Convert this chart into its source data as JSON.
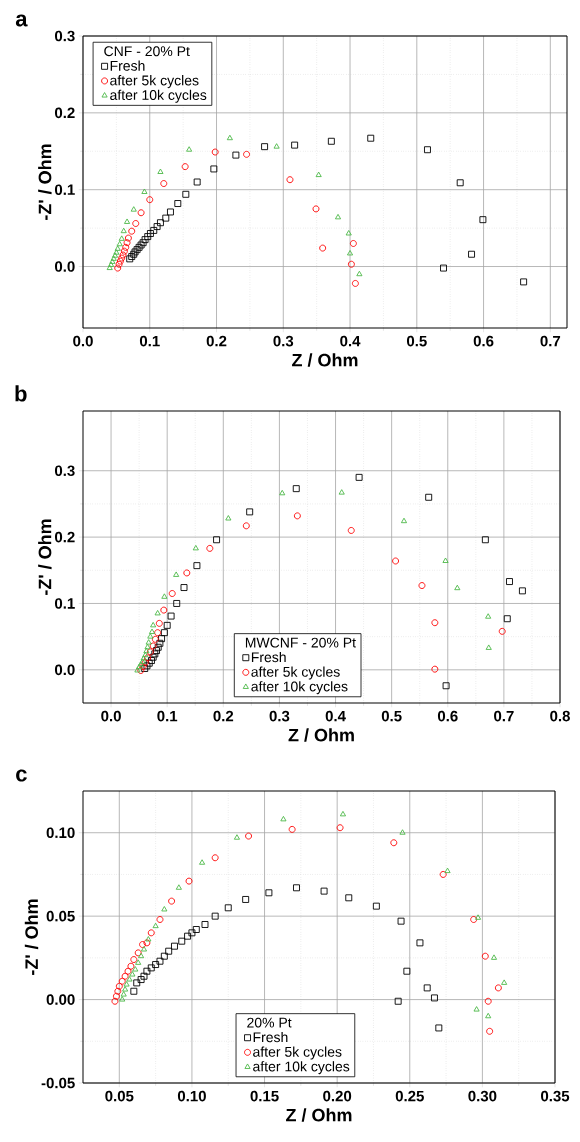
{
  "chart_data": [
    {
      "type": "scatter",
      "title": "a",
      "xlabel": "Z / Ohm",
      "ylabel": "-Z' / Ohm",
      "legend_title": "CNF - 20% Pt",
      "legend": "top left",
      "grid": true,
      "xlim": [
        0,
        0.725
      ],
      "ylim": [
        -0.08,
        0.3
      ],
      "xticks": [
        {
          "value": 0,
          "label": "0.0"
        },
        0.1,
        0.2,
        0.3,
        0.4,
        0.5,
        0.6,
        0.7
      ],
      "yticks": [
        {
          "value": 0,
          "label": "0.0"
        },
        0.1,
        0.2,
        0.3
      ],
      "series": [
        {
          "name": "Fresh",
          "color": "#000000",
          "marker": "square",
          "x": [
            0.07,
            0.073,
            0.076,
            0.078,
            0.081,
            0.084,
            0.087,
            0.09,
            0.093,
            0.097,
            0.101,
            0.106,
            0.111,
            0.116,
            0.124,
            0.131,
            0.142,
            0.154,
            0.171,
            0.196,
            0.229,
            0.272,
            0.317,
            0.372,
            0.431,
            0.516,
            0.565,
            0.599,
            0.582,
            0.54,
            0.66
          ],
          "values": [
            0.01,
            0.013,
            0.016,
            0.019,
            0.022,
            0.025,
            0.028,
            0.031,
            0.035,
            0.039,
            0.043,
            0.047,
            0.052,
            0.057,
            0.063,
            0.071,
            0.082,
            0.094,
            0.11,
            0.127,
            0.145,
            0.156,
            0.158,
            0.163,
            0.167,
            0.152,
            0.109,
            0.061,
            0.016,
            -0.002,
            -0.02
          ]
        },
        {
          "name": "after 5k cycles",
          "color": "#ff0000",
          "marker": "circle",
          "x": [
            0.052,
            0.054,
            0.056,
            0.058,
            0.06,
            0.062,
            0.064,
            0.066,
            0.068,
            0.073,
            0.079,
            0.087,
            0.1,
            0.121,
            0.153,
            0.198,
            0.245,
            0.31,
            0.349,
            0.359,
            0.405,
            0.402,
            0.408
          ],
          "values": [
            -0.002,
            0.003,
            0.007,
            0.011,
            0.015,
            0.02,
            0.025,
            0.031,
            0.037,
            0.046,
            0.056,
            0.07,
            0.087,
            0.108,
            0.13,
            0.149,
            0.146,
            0.113,
            0.075,
            0.024,
            0.03,
            0.003,
            -0.022
          ]
        },
        {
          "name": "after 10k cycles",
          "color": "#4cb848",
          "marker": "triangle",
          "x": [
            0.04,
            0.042,
            0.044,
            0.046,
            0.048,
            0.05,
            0.052,
            0.055,
            0.058,
            0.061,
            0.066,
            0.076,
            0.092,
            0.116,
            0.159,
            0.22,
            0.29,
            0.353,
            0.382,
            0.398,
            0.4,
            0.414
          ],
          "values": [
            -0.002,
            0.002,
            0.006,
            0.01,
            0.014,
            0.018,
            0.023,
            0.029,
            0.036,
            0.046,
            0.058,
            0.074,
            0.097,
            0.123,
            0.152,
            0.167,
            0.156,
            0.119,
            0.064,
            0.043,
            0.017,
            -0.01
          ]
        }
      ]
    },
    {
      "type": "scatter",
      "title": "b",
      "xlabel": "Z / Ohm",
      "ylabel": "-Z' / Ohm",
      "legend_title": "MWCNF - 20% Pt",
      "legend": "bottom",
      "grid": true,
      "xlim": [
        -0.05,
        0.8
      ],
      "ylim": [
        -0.05,
        0.39
      ],
      "xticks": [
        {
          "value": 0,
          "label": "0.0"
        },
        0.1,
        0.2,
        0.3,
        0.4,
        0.5,
        0.6,
        0.7,
        0.8
      ],
      "yticks": [
        {
          "value": 0,
          "label": "0.0"
        },
        0.1,
        0.2,
        0.3
      ],
      "series": [
        {
          "name": "Fresh",
          "color": "#000000",
          "marker": "square",
          "x": [
            0.06,
            0.064,
            0.068,
            0.072,
            0.075,
            0.078,
            0.081,
            0.084,
            0.087,
            0.09,
            0.095,
            0.1,
            0.107,
            0.117,
            0.13,
            0.153,
            0.188,
            0.247,
            0.33,
            0.442,
            0.566,
            0.667,
            0.71,
            0.733,
            0.706,
            0.597
          ],
          "values": [
            0.002,
            0.006,
            0.01,
            0.014,
            0.019,
            0.024,
            0.029,
            0.034,
            0.04,
            0.047,
            0.056,
            0.067,
            0.081,
            0.1,
            0.124,
            0.157,
            0.196,
            0.238,
            0.273,
            0.29,
            0.26,
            0.196,
            0.133,
            0.119,
            0.077,
            -0.024
          ]
        },
        {
          "name": "after 5k cycles",
          "color": "#ff0000",
          "marker": "circle",
          "x": [
            0.053,
            0.057,
            0.061,
            0.065,
            0.07,
            0.075,
            0.079,
            0.083,
            0.086,
            0.094,
            0.109,
            0.135,
            0.176,
            0.241,
            0.332,
            0.428,
            0.507,
            0.554,
            0.577,
            0.577,
            0.697
          ],
          "values": [
            -0.001,
            0.005,
            0.011,
            0.018,
            0.027,
            0.036,
            0.046,
            0.056,
            0.07,
            0.09,
            0.115,
            0.146,
            0.183,
            0.217,
            0.232,
            0.21,
            0.164,
            0.127,
            0.071,
            0.001,
            0.058
          ]
        },
        {
          "name": "after 10k cycles",
          "color": "#4cb848",
          "marker": "triangle",
          "x": [
            0.047,
            0.05,
            0.053,
            0.056,
            0.058,
            0.061,
            0.063,
            0.065,
            0.067,
            0.07,
            0.073,
            0.075,
            0.083,
            0.095,
            0.116,
            0.151,
            0.209,
            0.305,
            0.411,
            0.522,
            0.596,
            0.617,
            0.672,
            0.673
          ],
          "values": [
            -0.001,
            0.004,
            0.008,
            0.012,
            0.017,
            0.022,
            0.028,
            0.034,
            0.041,
            0.05,
            0.057,
            0.067,
            0.085,
            0.11,
            0.143,
            0.183,
            0.228,
            0.266,
            0.267,
            0.224,
            0.164,
            0.123,
            0.08,
            0.033
          ]
        }
      ]
    },
    {
      "type": "scatter",
      "title": "c",
      "xlabel": "Z / Ohm",
      "ylabel": "-Z' / Ohm",
      "legend_title": "20% Pt",
      "legend": "bottom",
      "grid": true,
      "xlim": [
        0.025,
        0.35
      ],
      "ylim": [
        -0.05,
        0.125
      ],
      "xticks": [
        {
          "value": 0.05,
          "label": "0.05"
        },
        {
          "value": 0.1,
          "label": "0.10"
        },
        {
          "value": 0.15,
          "label": "0.15"
        },
        {
          "value": 0.2,
          "label": "0.20"
        },
        {
          "value": 0.25,
          "label": "0.25"
        },
        {
          "value": 0.3,
          "label": "0.30"
        },
        {
          "value": 0.35,
          "label": "0.35"
        }
      ],
      "yticks": [
        {
          "value": -0.05,
          "label": "-0.05"
        },
        {
          "value": 0,
          "label": "0.00"
        },
        {
          "value": 0.05,
          "label": "0.05"
        },
        {
          "value": 0.1,
          "label": "0.10"
        }
      ],
      "series": [
        {
          "name": "Fresh",
          "color": "#000000",
          "marker": "square",
          "x": [
            0.06,
            0.062,
            0.065,
            0.067,
            0.069,
            0.072,
            0.075,
            0.078,
            0.081,
            0.084,
            0.088,
            0.093,
            0.097,
            0.1,
            0.103,
            0.109,
            0.116,
            0.125,
            0.137,
            0.153,
            0.172,
            0.191,
            0.208,
            0.227,
            0.244,
            0.257,
            0.248,
            0.262,
            0.267,
            0.242,
            0.27
          ],
          "values": [
            0.005,
            0.01,
            0.012,
            0.014,
            0.017,
            0.019,
            0.021,
            0.023,
            0.026,
            0.029,
            0.032,
            0.035,
            0.038,
            0.04,
            0.042,
            0.045,
            0.05,
            0.055,
            0.06,
            0.064,
            0.067,
            0.065,
            0.061,
            0.056,
            0.047,
            0.034,
            0.017,
            0.007,
            0.001,
            -0.001,
            -0.017
          ]
        },
        {
          "name": "after 5k cycles",
          "color": "#ff0000",
          "marker": "circle",
          "x": [
            0.047,
            0.048,
            0.049,
            0.05,
            0.052,
            0.054,
            0.056,
            0.058,
            0.06,
            0.063,
            0.066,
            0.069,
            0.072,
            0.078,
            0.086,
            0.098,
            0.116,
            0.139,
            0.169,
            0.202,
            0.239,
            0.273,
            0.294,
            0.302,
            0.311,
            0.304,
            0.305
          ],
          "values": [
            -0.001,
            0.002,
            0.005,
            0.008,
            0.011,
            0.014,
            0.017,
            0.02,
            0.024,
            0.028,
            0.033,
            0.034,
            0.04,
            0.048,
            0.059,
            0.071,
            0.085,
            0.098,
            0.102,
            0.103,
            0.094,
            0.075,
            0.048,
            0.026,
            0.007,
            -0.001,
            -0.019
          ]
        },
        {
          "name": "after 10k cycles",
          "color": "#4cb848",
          "marker": "triangle",
          "x": [
            0.052,
            0.053,
            0.054,
            0.055,
            0.057,
            0.059,
            0.061,
            0.063,
            0.065,
            0.067,
            0.07,
            0.075,
            0.081,
            0.091,
            0.107,
            0.131,
            0.163,
            0.204,
            0.245,
            0.276,
            0.297,
            0.308,
            0.315,
            0.296,
            0.304
          ],
          "values": [
            0.0,
            0.003,
            0.006,
            0.009,
            0.012,
            0.015,
            0.018,
            0.022,
            0.026,
            0.03,
            0.036,
            0.044,
            0.054,
            0.067,
            0.082,
            0.097,
            0.108,
            0.111,
            0.1,
            0.077,
            0.049,
            0.025,
            0.01,
            -0.006,
            -0.01
          ]
        }
      ]
    }
  ]
}
